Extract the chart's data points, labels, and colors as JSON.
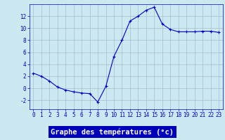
{
  "x": [
    0,
    1,
    2,
    3,
    4,
    5,
    6,
    7,
    8,
    9,
    10,
    11,
    12,
    13,
    14,
    15,
    16,
    17,
    18,
    19,
    20,
    21,
    22,
    23
  ],
  "y": [
    2.5,
    2.0,
    1.2,
    0.2,
    -0.3,
    -0.6,
    -0.8,
    -0.9,
    -2.3,
    0.3,
    5.3,
    8.0,
    11.2,
    12.0,
    13.0,
    13.5,
    10.7,
    9.8,
    9.4,
    9.4,
    9.4,
    9.5,
    9.5,
    9.3
  ],
  "line_color": "#0000cc",
  "marker": "+",
  "marker_size": 3,
  "bg_color": "#cce8f0",
  "grid_color": "#aabbcc",
  "xlabel": "Graphe des températures (°c)",
  "xlabel_color": "#ffffff",
  "xlabel_bg": "#0000bb",
  "ylabel_ticks": [
    -2,
    0,
    2,
    4,
    6,
    8,
    10,
    12
  ],
  "xlim": [
    -0.5,
    23.5
  ],
  "ylim": [
    -3.5,
    14.0
  ],
  "tick_color": "#0000cc",
  "tick_fontsize": 5.5,
  "label_fontsize": 7.5
}
